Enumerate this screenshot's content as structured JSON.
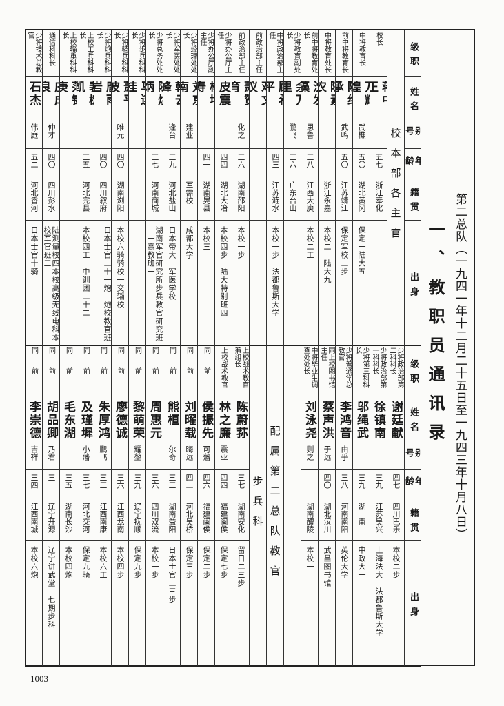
{
  "title": {
    "subtitle": "第二总队（一九四一年十二月二十五日至一九四三年十月八日）",
    "main": "一、教职员通讯录"
  },
  "headers": [
    "级职",
    "姓名",
    "别号",
    "年龄",
    "籍贯",
    "出身"
  ],
  "top_table": {
    "group_label": "校本部各主官",
    "rows": [
      {
        "rank": "校长",
        "name": "蒋中正",
        "alias": "",
        "age": "五七",
        "origin": "浙江奉化",
        "edu": ""
      },
      {
        "rank": "中将教育长",
        "name": "万耀煌",
        "alias": "武樵",
        "age": "五〇",
        "origin": "湖北黄冈",
        "edu": "保定一陆大五"
      },
      {
        "rank": "前中将教育长",
        "name": "陈继承",
        "alias": "武鸣",
        "age": "五〇",
        "origin": "江苏靖江",
        "edu": "保定军校二步"
      },
      {
        "rank": "中将教育处长",
        "name": "陈素农",
        "alias": "",
        "age": "",
        "origin": "浙江永嘉",
        "edu": "本校二　陆大九"
      },
      {
        "rank": "前中将教育处长",
        "name": "沈发藻",
        "alias": "思鲁",
        "age": "三八",
        "origin": "江西大庾",
        "edu": "本校二工"
      },
      {
        "rank": "少将教育副处长",
        "name": "余万里",
        "alias": "鹏飞",
        "age": "三六",
        "origin": "广东台山",
        "edu": ""
      },
      {
        "rank": "中将政治部主任",
        "name": "顾希平",
        "alias": "",
        "age": "四三",
        "origin": "江苏涟水",
        "edu": "本校一步　法都鲁斯大学"
      },
      {
        "rank": "前政治部主任",
        "name": "邓文仪",
        "alias": "",
        "age": "",
        "origin": "",
        "edu": ""
      },
      {
        "rank": "前政治部主任",
        "name": "萧赞育",
        "alias": "化之",
        "age": "三六",
        "origin": "湖南邵阳",
        "edu": "本校一步"
      },
      {
        "rank": "少将办公厅主任",
        "name": "皮震",
        "alias": "",
        "age": "四四",
        "origin": "湖北大冶",
        "edu": "本校四步　陆大特别班四"
      },
      {
        "rank": "少将办公厅副主任",
        "name": "杨坤寿",
        "alias": "",
        "age": "四一",
        "origin": "湖南晃县",
        "edu": "本校三"
      },
      {
        "rank": "少将经理处处长",
        "name": "刘京南",
        "alias": "建业",
        "age": "",
        "origin": "军需校",
        "edu": "成都大学"
      },
      {
        "rank": "少将军医处处长",
        "name": "韩云峰",
        "alias": "逢台",
        "age": "三九",
        "origin": "河北盐山",
        "edu": "日本帝大　军医学校"
      },
      {
        "rank": "少将总务处处长",
        "name": "陈焕炳",
        "alias": "",
        "age": "三七",
        "origin": "河南商城",
        "edu": "湖南军官研究所步兵教官研究班一一高教班一"
      },
      {
        "rank": "少将步兵科科长",
        "name": "马连桂",
        "alias": "",
        "age": "",
        "origin": "",
        "edu": ""
      },
      {
        "rank": "少将骑兵科科长",
        "name": "萧平波",
        "alias": "唯元",
        "age": "四〇",
        "origin": "湖南浏阳",
        "edu": "本校六骑骑校一交辎校"
      },
      {
        "rank": "少将炮兵科科长",
        "name": "唐雨岩",
        "alias": "",
        "age": "四〇",
        "origin": "四川叙府",
        "edu": "日本士官二十一炮　炮校教官班一"
      },
      {
        "rank": "上校工兵科科长",
        "name": "裴树凯",
        "alias": "",
        "age": "三五",
        "origin": "河北完县",
        "edu": "本校四工　中训团二十二"
      },
      {
        "rank": "上校辎重科科长",
        "name": "范锡庚",
        "alias": "",
        "age": "",
        "origin": "",
        "edu": ""
      },
      {
        "rank": "通信科科长",
        "name": "庄成良",
        "alias": "仲才",
        "age": "四〇",
        "origin": "四川彭水",
        "edu": "陆测量校四本校高级无线电科本校军官班三"
      },
      {
        "rank": "少将技术总教官",
        "name": "石杰",
        "alias": "伟庭",
        "age": "五二",
        "origin": "河北香河",
        "edu": "日本士官十骑"
      }
    ]
  },
  "bottom_table": {
    "rows_a": [
      {
        "rank": "少将政治部第二科科长",
        "name": "谢廷献",
        "alias": "",
        "age": "四七",
        "origin": "四川巴乐",
        "edu": "本校二步"
      },
      {
        "rank": "少将政治部第一科科长",
        "name": "徐镇南",
        "alias": "",
        "age": "三九",
        "origin": "江苏吴兴",
        "edu": "上海法大　法都鲁斯大学"
      },
      {
        "rank": "少将第三科科长",
        "name": "邬绳武",
        "alias": "",
        "age": "三九",
        "origin": "湖　南",
        "edu": "中政大一"
      },
      {
        "rank": "少将普通学总教官",
        "name": "李鸿音",
        "alias": "由乎",
        "age": "三八",
        "origin": "河南南阳",
        "edu": "英伦大学"
      },
      {
        "rank": "同上校图书馆主任",
        "name": "蔡声洪",
        "alias": "于远",
        "age": "四〇",
        "origin": "湖北汉川",
        "edu": "武昌图书馆"
      },
      {
        "rank": "中将毕业生调查处处长",
        "name": "刘泳尧",
        "alias": "则之",
        "age": "",
        "origin": "湖南醴陵",
        "edu": "本校一"
      }
    ],
    "group_label": "配属第二总队教官",
    "section_label": "步兵科",
    "rows_b": [
      {
        "rank": "上校战术教官兼组长",
        "name": "陈蔚荪",
        "alias": "",
        "age": "三七",
        "origin": "湖南安化",
        "edu": "留日二三步"
      },
      {
        "rank": "上校战术教官",
        "name": "林之廉",
        "alias": "震亚",
        "age": "四四",
        "origin": "福建闽侯",
        "edu": "保定七步"
      },
      {
        "rank": "同　　前",
        "name": "侯振先",
        "alias": "可藩",
        "age": "四六",
        "origin": "福建闽侯",
        "edu": "保定二步"
      },
      {
        "rank": "同　　前",
        "name": "刘曜载",
        "alias": "晦远",
        "age": "四二",
        "origin": "河北吴桥",
        "edu": "保定三步"
      },
      {
        "rank": "同　　前",
        "name": "熊桓",
        "alias": "尔奇",
        "age": "三三",
        "origin": "湖南益阳",
        "edu": "日本士官二三步"
      },
      {
        "rank": "同　　前",
        "name": "周惠元",
        "alias": "",
        "age": "三六",
        "origin": "四川双流",
        "edu": "本校一步"
      },
      {
        "rank": "同　　前",
        "name": "黎萌荣",
        "alias": "耀堃",
        "age": "三九",
        "origin": "辽宁抚顺",
        "edu": "保定九步"
      },
      {
        "rank": "同　　前",
        "name": "廖德诚",
        "alias": "",
        "age": "三六",
        "origin": "江西龙南",
        "edu": "本校四步"
      },
      {
        "rank": "同　　前",
        "name": "朱厚鸿",
        "alias": "鹏飞",
        "age": "三三",
        "origin": "江西南康",
        "edu": "本校六工"
      },
      {
        "rank": "同　　前",
        "name": "及瑾墀",
        "alias": "小藩",
        "age": "三七",
        "origin": "河北交河",
        "edu": "保定九骑"
      },
      {
        "rank": "同　　前",
        "name": "毛东湖",
        "alias": "",
        "age": "三五",
        "origin": "湖南长沙",
        "edu": "本校四炮"
      },
      {
        "rank": "同　　前",
        "name": "胡品卿",
        "alias": "乃君",
        "age": "三一",
        "origin": "辽宁开源",
        "edu": "辽宁讲武堂　七期步科"
      },
      {
        "rank": "同　　前",
        "name": "李崇德",
        "alias": "吉祥",
        "age": "三四",
        "origin": "江西南城",
        "edu": "本校六炮"
      }
    ]
  },
  "page_number": "1003"
}
